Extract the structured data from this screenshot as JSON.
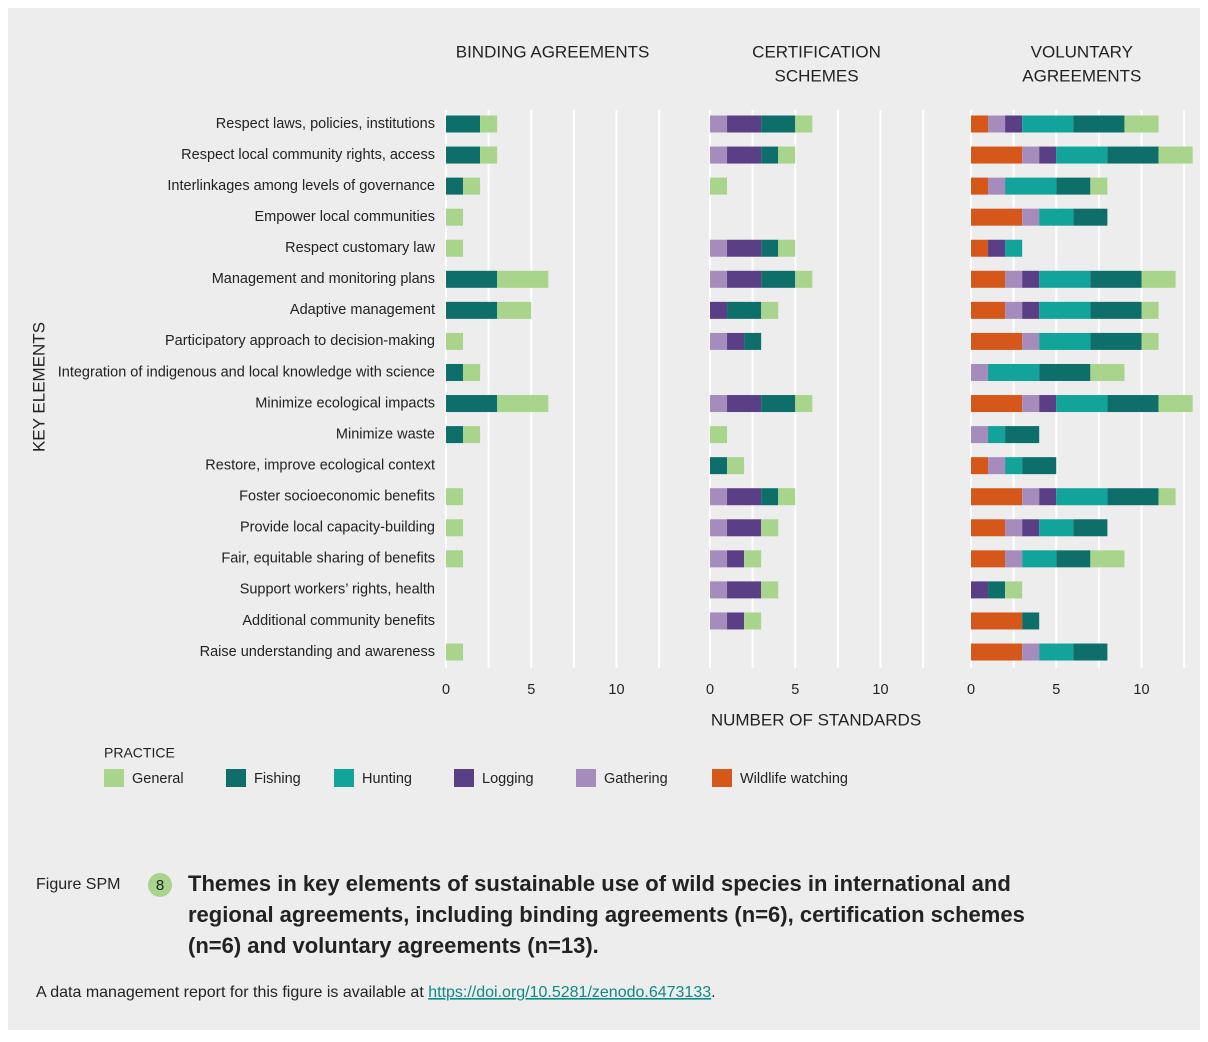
{
  "chart_data": [
    {
      "type": "bar",
      "title": [
        "BINDING AGREEMENTS"
      ],
      "categories": [
        "Respect laws, policies, institutions",
        "Respect local community rights, access",
        "Interlinkages among levels of governance",
        "Empower local communities",
        "Respect customary law",
        "Management and monitoring plans",
        "Adaptive management",
        "Participatory approach to decision-making",
        "Integration of indigenous and local knowledge with science",
        "Minimize ecological impacts",
        "Minimize waste",
        "Restore, improve ecological context",
        "Foster socioeconomic benefits",
        "Provide local capacity-building",
        "Fair, equitable sharing of benefits",
        "Support workers’ rights, health",
        "Additional community benefits",
        "Raise understanding and awareness"
      ],
      "xlim": [
        0,
        12.5
      ],
      "xticks": [
        0,
        5,
        10
      ],
      "minor_xticks": [
        2.5,
        7.5,
        12.5
      ],
      "grid": true,
      "series": [
        {
          "name": "General",
          "color": "#a8d58b",
          "values": [
            1,
            1,
            1,
            1,
            1,
            3,
            2,
            1,
            1,
            3,
            1,
            0,
            1,
            1,
            1,
            0,
            0,
            1
          ]
        },
        {
          "name": "Fishing",
          "color": "#0e6e6a",
          "values": [
            2,
            2,
            1,
            0,
            0,
            3,
            3,
            0,
            1,
            3,
            1,
            0,
            0,
            0,
            0,
            0,
            0,
            0
          ]
        },
        {
          "name": "Hunting",
          "color": "#12a39a",
          "values": [
            0,
            0,
            0,
            0,
            0,
            0,
            0,
            0,
            0,
            0,
            0,
            0,
            0,
            0,
            0,
            0,
            0,
            0
          ]
        },
        {
          "name": "Logging",
          "color": "#5b3f86",
          "values": [
            0,
            0,
            0,
            0,
            0,
            0,
            0,
            0,
            0,
            0,
            0,
            0,
            0,
            0,
            0,
            0,
            0,
            0
          ]
        },
        {
          "name": "Gathering",
          "color": "#a58cbd",
          "values": [
            0,
            0,
            0,
            0,
            0,
            0,
            0,
            0,
            0,
            0,
            0,
            0,
            0,
            0,
            0,
            0,
            0,
            0
          ]
        },
        {
          "name": "Wildlife watching",
          "color": "#d5581a",
          "values": [
            0,
            0,
            0,
            0,
            0,
            0,
            0,
            0,
            0,
            0,
            0,
            0,
            0,
            0,
            0,
            0,
            0,
            0
          ]
        }
      ]
    },
    {
      "type": "bar",
      "title": [
        "CERTIFICATION",
        "SCHEMES"
      ],
      "xlim": [
        0,
        12.5
      ],
      "xticks": [
        0,
        5,
        10
      ],
      "minor_xticks": [
        2.5,
        7.5,
        12.5
      ],
      "grid": true,
      "series": [
        {
          "name": "General",
          "color": "#a8d58b",
          "values": [
            1,
            1,
            1,
            0,
            1,
            1,
            1,
            0,
            0,
            1,
            1,
            1,
            1,
            1,
            1,
            1,
            1,
            0
          ]
        },
        {
          "name": "Fishing",
          "color": "#0e6e6a",
          "values": [
            2,
            1,
            0,
            0,
            1,
            2,
            2,
            1,
            0,
            2,
            0,
            1,
            1,
            0,
            0,
            0,
            0,
            0
          ]
        },
        {
          "name": "Hunting",
          "color": "#12a39a",
          "values": [
            0,
            0,
            0,
            0,
            0,
            0,
            0,
            0,
            0,
            0,
            0,
            0,
            0,
            0,
            0,
            0,
            0,
            0
          ]
        },
        {
          "name": "Logging",
          "color": "#5b3f86",
          "values": [
            2,
            2,
            0,
            0,
            2,
            2,
            1,
            1,
            0,
            2,
            0,
            0,
            2,
            2,
            1,
            2,
            1,
            0
          ]
        },
        {
          "name": "Gathering",
          "color": "#a58cbd",
          "values": [
            1,
            1,
            0,
            0,
            1,
            1,
            0,
            1,
            0,
            1,
            0,
            0,
            1,
            1,
            1,
            1,
            1,
            0
          ]
        },
        {
          "name": "Wildlife watching",
          "color": "#d5581a",
          "values": [
            0,
            0,
            0,
            0,
            0,
            0,
            0,
            0,
            0,
            0,
            0,
            0,
            0,
            0,
            0,
            0,
            0,
            0
          ]
        }
      ]
    },
    {
      "type": "bar",
      "title": [
        "VOLUNTARY",
        "AGREEMENTS"
      ],
      "xlim": [
        0,
        13
      ],
      "xticks": [
        0,
        5,
        10
      ],
      "minor_xticks": [
        2.5,
        7.5,
        12.5
      ],
      "grid": true,
      "series": [
        {
          "name": "General",
          "color": "#a8d58b",
          "values": [
            2,
            2,
            1,
            0,
            0,
            2,
            1,
            1,
            2,
            2,
            0,
            0,
            1,
            0,
            2,
            1,
            0,
            0
          ]
        },
        {
          "name": "Fishing",
          "color": "#0e6e6a",
          "values": [
            3,
            3,
            2,
            2,
            0,
            3,
            3,
            3,
            3,
            3,
            2,
            2,
            3,
            2,
            2,
            1,
            1,
            2
          ]
        },
        {
          "name": "Hunting",
          "color": "#12a39a",
          "values": [
            3,
            3,
            3,
            2,
            1,
            3,
            3,
            3,
            3,
            3,
            1,
            1,
            3,
            2,
            2,
            0,
            0,
            2
          ]
        },
        {
          "name": "Logging",
          "color": "#5b3f86",
          "values": [
            1,
            1,
            0,
            0,
            1,
            1,
            1,
            0,
            0,
            1,
            0,
            0,
            1,
            1,
            0,
            1,
            0,
            0
          ]
        },
        {
          "name": "Gathering",
          "color": "#a58cbd",
          "values": [
            1,
            1,
            1,
            1,
            0,
            1,
            1,
            1,
            1,
            1,
            1,
            1,
            1,
            1,
            1,
            0,
            0,
            1
          ]
        },
        {
          "name": "Wildlife watching",
          "color": "#d5581a",
          "values": [
            1,
            3,
            1,
            3,
            1,
            2,
            2,
            3,
            0,
            3,
            0,
            1,
            3,
            2,
            2,
            0,
            3,
            3
          ]
        }
      ]
    }
  ],
  "xlabel": "NUMBER OF STANDARDS",
  "ylabel": "KEY ELEMENTS",
  "legend_title": "PRACTICE",
  "figure_label": "Figure SPM",
  "figure_number": "8",
  "caption": [
    "Themes in key elements of sustainable use of wild species in international and",
    "regional agreements, including binding agreements (n=6), certification schemes",
    "(n=6) and voluntary agreements (n=13)."
  ],
  "note": "A data management report for this figure is available at ",
  "link": "https://doi.org/10.5281/zenodo.6473133",
  "note_end": "."
}
